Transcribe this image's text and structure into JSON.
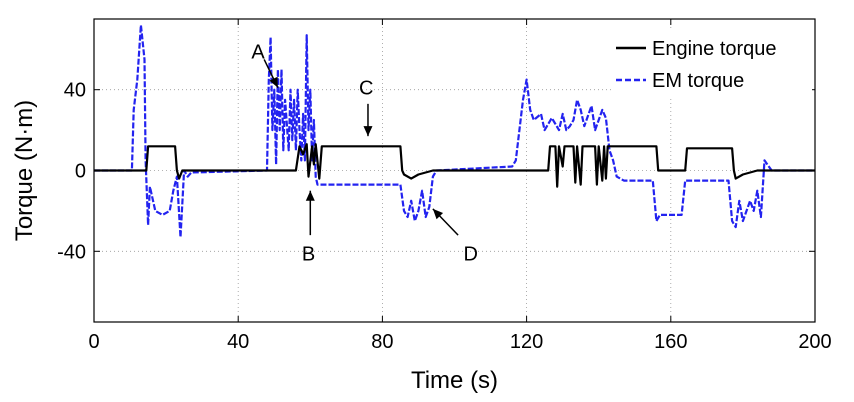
{
  "chart_data": {
    "type": "line",
    "title": "",
    "xlabel": "Time (s)",
    "ylabel": "Torque (N·m)",
    "xlim": [
      0,
      200
    ],
    "ylim": [
      -75,
      75
    ],
    "xticks": [
      0,
      40,
      80,
      120,
      160,
      200
    ],
    "yticks": [
      -40,
      0,
      40
    ],
    "grid": true,
    "legend_position": "top-right",
    "series": [
      {
        "name": "Engine torque",
        "color": "#000000",
        "style": "solid",
        "points": [
          [
            0,
            0
          ],
          [
            14.5,
            0
          ],
          [
            15,
            12
          ],
          [
            22.5,
            12
          ],
          [
            23,
            0
          ],
          [
            23.6,
            -4
          ],
          [
            24.5,
            0
          ],
          [
            47,
            0
          ],
          [
            56,
            0
          ],
          [
            57,
            12
          ],
          [
            58,
            8
          ],
          [
            59,
            13
          ],
          [
            59.5,
            -3
          ],
          [
            60.5,
            12
          ],
          [
            61,
            3
          ],
          [
            61.5,
            13
          ],
          [
            62.5,
            -4
          ],
          [
            63.2,
            12
          ],
          [
            85,
            12
          ],
          [
            85.5,
            0
          ],
          [
            86,
            -2
          ],
          [
            88,
            -4
          ],
          [
            90,
            -2
          ],
          [
            94,
            0
          ],
          [
            126,
            0
          ],
          [
            126.5,
            12
          ],
          [
            128,
            12
          ],
          [
            128.5,
            -8
          ],
          [
            129,
            12
          ],
          [
            130,
            2
          ],
          [
            130.5,
            12
          ],
          [
            133,
            12
          ],
          [
            133.5,
            -6
          ],
          [
            134,
            12
          ],
          [
            135,
            -7
          ],
          [
            135.5,
            12
          ],
          [
            139,
            12
          ],
          [
            139.5,
            -7
          ],
          [
            140,
            12
          ],
          [
            141,
            -5
          ],
          [
            141.5,
            12
          ],
          [
            142,
            -4
          ],
          [
            142.5,
            12
          ],
          [
            156,
            12
          ],
          [
            156.5,
            0
          ],
          [
            164,
            0
          ],
          [
            164.5,
            11
          ],
          [
            177,
            11
          ],
          [
            177.5,
            0
          ],
          [
            178,
            -4
          ],
          [
            180,
            -2
          ],
          [
            184,
            0
          ],
          [
            200,
            0
          ]
        ]
      },
      {
        "name": "EM torque",
        "color": "#2323f0",
        "style": "dashed",
        "points": [
          [
            0,
            0
          ],
          [
            10.5,
            0
          ],
          [
            11,
            30
          ],
          [
            12,
            45
          ],
          [
            13,
            72
          ],
          [
            14,
            55
          ],
          [
            14.3,
            5
          ],
          [
            15,
            -27
          ],
          [
            15.5,
            -8
          ],
          [
            17,
            -20
          ],
          [
            19,
            -22
          ],
          [
            21,
            -20
          ],
          [
            22,
            -10
          ],
          [
            23,
            -3
          ],
          [
            24,
            -33
          ],
          [
            25,
            0
          ],
          [
            26,
            -3
          ],
          [
            27,
            -1
          ],
          [
            48,
            0
          ],
          [
            48.5,
            45
          ],
          [
            49,
            66
          ],
          [
            49.5,
            20
          ],
          [
            50,
            40
          ],
          [
            50.5,
            3
          ],
          [
            51,
            50
          ],
          [
            51.5,
            20
          ],
          [
            52,
            50
          ],
          [
            52.5,
            10
          ],
          [
            53,
            35
          ],
          [
            54,
            10
          ],
          [
            54.5,
            40
          ],
          [
            55,
            15
          ],
          [
            55.5,
            35
          ],
          [
            56,
            10
          ],
          [
            56.5,
            40
          ],
          [
            57,
            20
          ],
          [
            57.5,
            5
          ],
          [
            58,
            28
          ],
          [
            58.5,
            5
          ],
          [
            59,
            67
          ],
          [
            59.5,
            20
          ],
          [
            60,
            40
          ],
          [
            60.5,
            5
          ],
          [
            61,
            25
          ],
          [
            61.5,
            -3
          ],
          [
            62,
            -7
          ],
          [
            84,
            -7
          ],
          [
            85,
            -7
          ],
          [
            86,
            -20
          ],
          [
            87,
            -23
          ],
          [
            88,
            -15
          ],
          [
            89,
            -25
          ],
          [
            90,
            -20
          ],
          [
            91,
            -10
          ],
          [
            92,
            -23
          ],
          [
            93,
            -18
          ],
          [
            94,
            -3
          ],
          [
            95,
            0
          ],
          [
            116,
            2
          ],
          [
            117,
            5
          ],
          [
            118,
            20
          ],
          [
            119,
            35
          ],
          [
            120,
            45
          ],
          [
            121,
            30
          ],
          [
            122,
            25
          ],
          [
            124,
            28
          ],
          [
            125,
            20
          ],
          [
            127,
            26
          ],
          [
            128,
            23
          ],
          [
            129,
            20
          ],
          [
            130,
            28
          ],
          [
            131,
            20
          ],
          [
            132,
            22
          ],
          [
            133,
            25
          ],
          [
            134,
            35
          ],
          [
            135,
            30
          ],
          [
            136,
            22
          ],
          [
            137,
            27
          ],
          [
            138,
            32
          ],
          [
            139,
            20
          ],
          [
            140,
            25
          ],
          [
            141,
            30
          ],
          [
            142,
            26
          ],
          [
            143,
            10
          ],
          [
            144,
            5
          ],
          [
            145,
            -3
          ],
          [
            147,
            -5
          ],
          [
            155,
            -5
          ],
          [
            156,
            -25
          ],
          [
            157,
            -22
          ],
          [
            163,
            -22
          ],
          [
            164,
            -5
          ],
          [
            172,
            -5
          ],
          [
            176,
            -5
          ],
          [
            177,
            -25
          ],
          [
            178,
            -28
          ],
          [
            179,
            -15
          ],
          [
            180,
            -25
          ],
          [
            181,
            -20
          ],
          [
            182,
            -15
          ],
          [
            183,
            -20
          ],
          [
            184,
            -10
          ],
          [
            185,
            -23
          ],
          [
            186,
            5
          ],
          [
            188,
            0
          ],
          [
            200,
            0
          ]
        ]
      }
    ],
    "annotations": [
      {
        "label": "A",
        "text_at": [
          45.5,
          59
        ],
        "arrow_from": [
          47.2,
          55
        ],
        "arrow_to": [
          51,
          41
        ]
      },
      {
        "label": "B",
        "text_at": [
          59.5,
          -41
        ],
        "arrow_from": [
          60,
          -32
        ],
        "arrow_to": [
          60,
          -10
        ]
      },
      {
        "label": "C",
        "text_at": [
          75.5,
          41
        ],
        "arrow_from": [
          76,
          33
        ],
        "arrow_to": [
          76,
          17
        ]
      },
      {
        "label": "D",
        "text_at": [
          104.5,
          -41
        ],
        "arrow_from": [
          101,
          -32
        ],
        "arrow_to": [
          94,
          -19
        ]
      }
    ]
  }
}
